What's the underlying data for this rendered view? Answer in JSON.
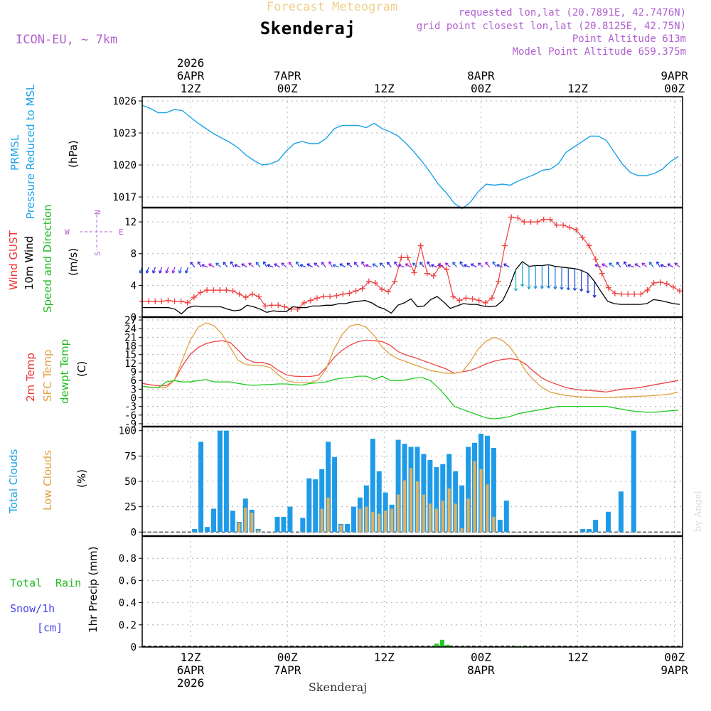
{
  "header": {
    "title_faint": "Forecast Meteogram",
    "location": "Skenderaj",
    "model": "ICON-EU, ~ 7km",
    "requested": "requested lon,lat (20.7891E, 42.7476N)",
    "grid_point": "grid point closest lon,lat (20.8125E, 42.75N)",
    "point_altitude": "Point Altitude 613m",
    "model_altitude": "Model Point Altitude 659.375m",
    "watermark": "by Angel",
    "footer_location": "Skenderaj"
  },
  "colors": {
    "pressure": "#1ca3e8",
    "gust": "#f04040",
    "wind": "#000000",
    "t2m": "#ee4444",
    "sfc": "#e0a040",
    "dew": "#22cc22",
    "total_cloud": "#1e9be8",
    "low_cloud": "#e0b060",
    "rain": "#22cc22",
    "snow": "#4444ee",
    "meta": "#b060d0",
    "title_faint": "#f0d090",
    "axis_label_blue": "#1ca3e8"
  },
  "time_axis": {
    "hours": 67,
    "start": "6APR 03Z",
    "top_ticks": [
      {
        "h": 9,
        "lines": [
          "2026",
          "6APR",
          "12Z"
        ]
      },
      {
        "h": 21,
        "lines": [
          "7APR",
          "00Z"
        ]
      },
      {
        "h": 33,
        "lines": [
          "12Z"
        ]
      },
      {
        "h": 45,
        "lines": [
          "8APR",
          "00Z"
        ]
      },
      {
        "h": 57,
        "lines": [
          "12Z"
        ]
      },
      {
        "h": 69,
        "lines": [
          "9APR",
          "00Z"
        ]
      }
    ],
    "bottom_ticks": [
      {
        "h": 9,
        "lines": [
          "12Z",
          "6APR",
          "2026"
        ]
      },
      {
        "h": 21,
        "lines": [
          "00Z",
          "7APR"
        ]
      },
      {
        "h": 33,
        "lines": [
          "12Z"
        ]
      },
      {
        "h": 45,
        "lines": [
          "00Z",
          "8APR"
        ]
      },
      {
        "h": 57,
        "lines": [
          "12Z"
        ]
      },
      {
        "h": 69,
        "lines": [
          "00Z",
          "9APR"
        ]
      }
    ]
  },
  "panels": {
    "pressure": {
      "labels": [
        "PRMSL",
        "Pressure Reduced to MSL",
        "(hPa)"
      ]
    },
    "wind": {
      "labels": [
        "Wind GUST",
        "10m Wind",
        "Speed and Direction",
        "(m/s)"
      ],
      "compass": [
        "N",
        "W",
        "E",
        "S"
      ]
    },
    "temp": {
      "labels": [
        "2m Temp",
        "SFC Temp",
        "dewpt Temp",
        "(C)"
      ]
    },
    "cloud": {
      "labels": [
        "Total Clouds",
        "Low Clouds",
        "(%)"
      ]
    },
    "precip": {
      "labels": [
        "Total",
        "Rain",
        "Snow/1h",
        "[cm]",
        "1hr Precip (mm)"
      ]
    }
  },
  "chart_data": [
    {
      "type": "line",
      "title": "PRMSL Pressure Reduced to MSL",
      "ylabel": "(hPa)",
      "ylim": [
        1016,
        1026.4
      ],
      "yticks": [
        1017,
        1020,
        1023,
        1026
      ],
      "series": [
        {
          "name": "PRMSL",
          "x_step_hours": 1,
          "values": [
            1025.6,
            1025.3,
            1024.9,
            1024.9,
            1025.2,
            1025.1,
            1024.5,
            1023.9,
            1023.4,
            1022.9,
            1022.5,
            1022.1,
            1021.6,
            1020.9,
            1020.4,
            1020.0,
            1020.1,
            1020.4,
            1021.3,
            1022.0,
            1022.2,
            1022.0,
            1022.0,
            1022.5,
            1023.4,
            1023.7,
            1023.7,
            1023.7,
            1023.5,
            1023.9,
            1023.4,
            1023.1,
            1022.7,
            1022.0,
            1021.2,
            1020.3,
            1019.3,
            1018.2,
            1017.4,
            1016.4,
            1015.9,
            1016.5,
            1017.5,
            1018.2,
            1018.1,
            1018.2,
            1018.1,
            1018.5,
            1018.8,
            1019.1,
            1019.5,
            1019.6,
            1020.1,
            1021.2,
            1021.7,
            1022.2,
            1022.7,
            1022.7,
            1022.3,
            1021.2,
            1020.1,
            1019.3,
            1019.0,
            1019.0,
            1019.2,
            1019.6,
            1020.3,
            1020.8
          ]
        }
      ]
    },
    {
      "type": "line",
      "title": "Wind GUST / 10m Wind Speed and Direction",
      "ylabel": "(m/s)",
      "ylim": [
        0,
        13.8
      ],
      "yticks": [
        0,
        4,
        8,
        12
      ],
      "series": [
        {
          "name": "Wind GUST",
          "x_step_hours": 1,
          "values": [
            2.0,
            2.0,
            2.0,
            2.0,
            2.1,
            2.0,
            2.0,
            1.8,
            2.5,
            3.1,
            3.4,
            3.4,
            3.4,
            3.4,
            3.3,
            2.9,
            2.5,
            2.9,
            2.6,
            1.4,
            1.5,
            1.5,
            1.3,
            1.0,
            1.0,
            1.8,
            2.1,
            2.4,
            2.6,
            2.6,
            2.7,
            2.9,
            3.0,
            3.3,
            3.6,
            4.5,
            4.3,
            3.5,
            3.2,
            4.5,
            7.5,
            7.5,
            5.6,
            9.0,
            5.5,
            5.2,
            6.5,
            6.0,
            2.6,
            2.1,
            2.4,
            2.3,
            2.1,
            1.8,
            2.4,
            4.5,
            9.0,
            12.6,
            12.5,
            12.0,
            12.0,
            12.0,
            12.3,
            12.3,
            11.6,
            11.6,
            11.3,
            11.0,
            10.0,
            9.0,
            7.3,
            5.5,
            3.7,
            3.0,
            2.9,
            2.9,
            2.9,
            2.9,
            3.4,
            4.3,
            4.4,
            4.2,
            3.8,
            3.3
          ]
        },
        {
          "name": "10m Wind",
          "x_step_hours": 1,
          "values": [
            1.2,
            1.2,
            1.2,
            1.2,
            1.2,
            1.0,
            0.4,
            1.2,
            1.4,
            1.3,
            1.3,
            1.3,
            1.3,
            1.0,
            0.8,
            0.9,
            1.5,
            1.3,
            1.0,
            0.6,
            0.8,
            0.7,
            0.7,
            1.3,
            1.2,
            1.2,
            1.4,
            1.4,
            1.5,
            1.5,
            1.7,
            1.7,
            1.9,
            2.0,
            2.1,
            1.8,
            1.3,
            1.0,
            0.5,
            1.5,
            1.8,
            2.3,
            1.3,
            1.4,
            2.2,
            2.6,
            1.9,
            1.1,
            1.4,
            1.7,
            1.6,
            1.6,
            1.4,
            1.3,
            1.4,
            2.1,
            3.8,
            6.0,
            7.0,
            6.4,
            6.5,
            6.5,
            6.6,
            6.4,
            6.3,
            6.2,
            6.1,
            5.9,
            5.5,
            4.5,
            3.2,
            2.0,
            1.7,
            1.6,
            1.6,
            1.6,
            1.6,
            1.7,
            2.2,
            2.1,
            1.9,
            1.7,
            1.6
          ]
        }
      ]
    },
    {
      "type": "line",
      "title": "2m Temp / SFC Temp / dewpt Temp",
      "ylabel": "(C)",
      "ylim": [
        -10,
        28
      ],
      "yticks": [
        -9,
        -6,
        -3,
        0,
        3,
        6,
        9,
        12,
        15,
        18,
        21,
        24,
        27
      ],
      "series": [
        {
          "name": "2m Temp",
          "x_step_hours": 1,
          "values": [
            5,
            4.5,
            4.2,
            4.2,
            6,
            11,
            15,
            17.5,
            18.8,
            19.5,
            19.8,
            19.2,
            16.5,
            13.5,
            12.3,
            12.3,
            11.5,
            9.5,
            8.0,
            7.5,
            7.4,
            7.4,
            7.8,
            10.5,
            14,
            16.5,
            18.3,
            19.5,
            20,
            19.8,
            19.5,
            18.2,
            16,
            14.8,
            14.0,
            13.0,
            12.0,
            11.0,
            10.0,
            8.5,
            9.0,
            9.5,
            10.5,
            11.8,
            12.7,
            13.3,
            13.6,
            13.2,
            11.5,
            9,
            6.8,
            5.5,
            4.5,
            3.5,
            3.0,
            2.6,
            2.5,
            2.3,
            2.0,
            2.5,
            3.0,
            3.2,
            3.5,
            4.0,
            4.5,
            5,
            5.5,
            6
          ]
        },
        {
          "name": "SFC Temp",
          "x_step_hours": 1,
          "values": [
            4,
            3.7,
            3.5,
            3.5,
            6,
            13,
            20,
            24.5,
            26,
            25,
            22,
            17.5,
            13,
            11.5,
            11.3,
            11.2,
            10.5,
            8,
            6,
            5.4,
            5.2,
            5.2,
            6.2,
            10,
            17,
            22,
            25,
            25.5,
            24.5,
            21.5,
            17.5,
            15,
            13.5,
            12.5,
            11.5,
            10.5,
            9.5,
            9.0,
            8.5,
            8.5,
            9.0,
            12.5,
            17.0,
            19.7,
            21.0,
            20.0,
            17.5,
            13.5,
            9,
            6,
            3.5,
            2,
            1.3,
            0.8,
            0.5,
            0.3,
            0.2,
            0.1,
            0.1,
            0.2,
            0.3,
            0.4,
            0.5,
            0.6,
            0.8,
            1.0,
            1.3,
            2
          ]
        },
        {
          "name": "dewpt Temp",
          "x_step_hours": 1,
          "values": [
            4,
            3.6,
            3.5,
            5.5,
            6,
            5.5,
            5.5,
            6.0,
            6.3,
            5.5,
            5.5,
            5.5,
            5,
            4.5,
            4.3,
            4.5,
            4.6,
            4.8,
            4.8,
            4.5,
            4.4,
            5,
            5.2,
            5.5,
            6.4,
            6.8,
            7.0,
            7.5,
            7.5,
            6.4,
            7.5,
            6.0,
            6.0,
            6.2,
            6.8,
            7.0,
            6.0,
            3.5,
            0.5,
            -3,
            -4,
            -5,
            -6,
            -7,
            -7.3,
            -7,
            -6.5,
            -5.5,
            -5,
            -4.5,
            -4,
            -3.5,
            -3,
            -3,
            -3,
            -3,
            -3,
            -3,
            -3,
            -3.5,
            -4,
            -4.5,
            -4.8,
            -5,
            -5,
            -4.8,
            -4.5,
            -4.3
          ]
        }
      ]
    },
    {
      "type": "bar",
      "title": "Total Clouds / Low Clouds",
      "ylabel": "(%)",
      "ylim": [
        -4,
        104
      ],
      "yticks": [
        0,
        25,
        50,
        75,
        100
      ],
      "series": [
        {
          "name": "Total Clouds",
          "x_step_hours": 1,
          "values": [
            0,
            0,
            0,
            0,
            0,
            0,
            0,
            0,
            3,
            89,
            5,
            23,
            100,
            100,
            21,
            10,
            33,
            22,
            3,
            0,
            0,
            15,
            15,
            25,
            0,
            14,
            53,
            52,
            62,
            89,
            74,
            8,
            8,
            25,
            34,
            46,
            92,
            60,
            39,
            27,
            91,
            87,
            84,
            84,
            77,
            71,
            64,
            67,
            77,
            60,
            46,
            84,
            88,
            97,
            95,
            83,
            12,
            31,
            0,
            0,
            0,
            0,
            0,
            0,
            0,
            0,
            0,
            0,
            0,
            3,
            3,
            12,
            0,
            20,
            0,
            40,
            0,
            100,
            0,
            0,
            0,
            0,
            0,
            0,
            0
          ]
        },
        {
          "name": "Low Clouds",
          "x_step_hours": 1,
          "values": [
            0,
            0,
            0,
            0,
            0,
            0,
            0,
            0,
            0,
            0,
            0,
            0,
            0,
            0,
            0,
            9,
            24,
            19,
            2,
            0,
            0,
            0,
            0,
            0,
            0,
            0,
            0,
            0,
            23,
            34,
            0,
            7,
            0,
            0,
            23,
            25,
            20,
            18,
            21,
            23,
            37,
            51,
            63,
            50,
            37,
            28,
            23,
            31,
            43,
            28,
            4,
            33,
            70,
            62,
            47,
            15,
            0,
            0,
            0,
            0,
            0,
            0,
            0,
            0,
            0,
            0,
            0,
            0,
            0,
            0,
            0,
            0,
            0,
            0,
            0,
            0,
            0,
            0,
            0,
            0,
            0,
            0,
            0
          ]
        }
      ]
    },
    {
      "type": "bar",
      "title": "1hr Precip (mm)",
      "ylabel": "1hr Precip (mm)",
      "ylim": [
        0,
        1.0
      ],
      "yticks": [
        0,
        0.2,
        0.4,
        0.6,
        0.8
      ],
      "series": [
        {
          "name": "Total Rain",
          "points": [
            {
              "h": 36.5,
              "v": 0.03
            },
            {
              "h": 37.2,
              "v": 0.065
            },
            {
              "h": 37.9,
              "v": 0.02
            },
            {
              "h": 46.6,
              "v": 0.01
            }
          ]
        }
      ]
    }
  ]
}
